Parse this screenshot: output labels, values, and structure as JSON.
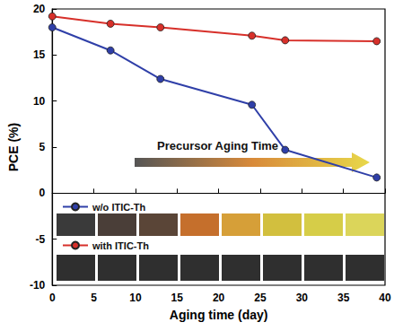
{
  "chart_data": {
    "type": "line",
    "x_label": "Aging time (day)",
    "y_label": "PCE (%)",
    "x": [
      0,
      7,
      13,
      24,
      28,
      39
    ],
    "series": [
      {
        "name": "w/o ITIC-Th",
        "color": "#2f3fa8",
        "values": [
          18.0,
          15.5,
          12.4,
          9.6,
          4.7,
          1.7
        ]
      },
      {
        "name": "with ITIC-Th",
        "color": "#d7302a",
        "values": [
          19.2,
          18.4,
          18.0,
          17.1,
          16.6,
          16.5
        ]
      }
    ],
    "xlim": [
      0,
      40
    ],
    "xticks": [
      0,
      5,
      10,
      15,
      20,
      25,
      30,
      35,
      40
    ],
    "ylim": [
      -10,
      20
    ],
    "yticks": [
      -10,
      -5,
      0,
      5,
      10,
      15,
      20
    ],
    "annotation": "Precursor Aging Time",
    "marker": "circle",
    "legend": "left",
    "grid": false
  }
}
